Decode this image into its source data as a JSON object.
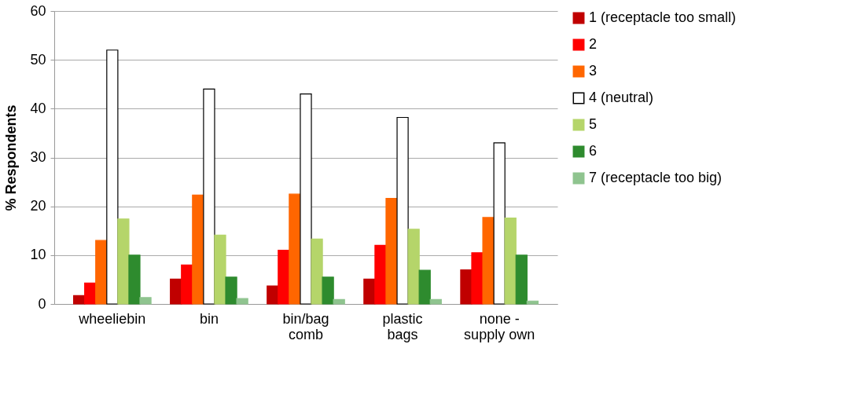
{
  "chart_data": {
    "type": "bar",
    "ylabel": "% Respondents",
    "categories": [
      "wheeliebin",
      "bin",
      "bin/bag comb",
      "plastic bags",
      "none - supply own"
    ],
    "ylim": [
      0,
      60
    ],
    "yticks": [
      0,
      10,
      20,
      30,
      40,
      50,
      60
    ],
    "grid": "y",
    "legend": "right",
    "series": [
      {
        "name": "1 (receptacle too small)",
        "color": "#c00000",
        "values": [
          1.7,
          5.1,
          3.7,
          5.1,
          7
        ]
      },
      {
        "name": "2",
        "color": "#ff0000",
        "values": [
          4.3,
          8,
          11,
          12,
          10.5
        ]
      },
      {
        "name": "3",
        "color": "#ff6600",
        "values": [
          13,
          22.3,
          22.5,
          21.6,
          17.7
        ]
      },
      {
        "name": "4 (neutral)",
        "color": "#ffffff",
        "values": [
          52,
          44,
          43,
          38.2,
          33
        ]
      },
      {
        "name": "5",
        "color": "#b5d56a",
        "values": [
          17.4,
          14.1,
          13.3,
          15.3,
          17.6
        ]
      },
      {
        "name": "6",
        "color": "#2e8b2e",
        "values": [
          10,
          5.5,
          5.5,
          6.9,
          10
        ]
      },
      {
        "name": "7 (receptacle too big)",
        "color": "#8fc48f",
        "values": [
          1.3,
          1.1,
          0.9,
          0.9,
          0.6
        ]
      }
    ]
  }
}
